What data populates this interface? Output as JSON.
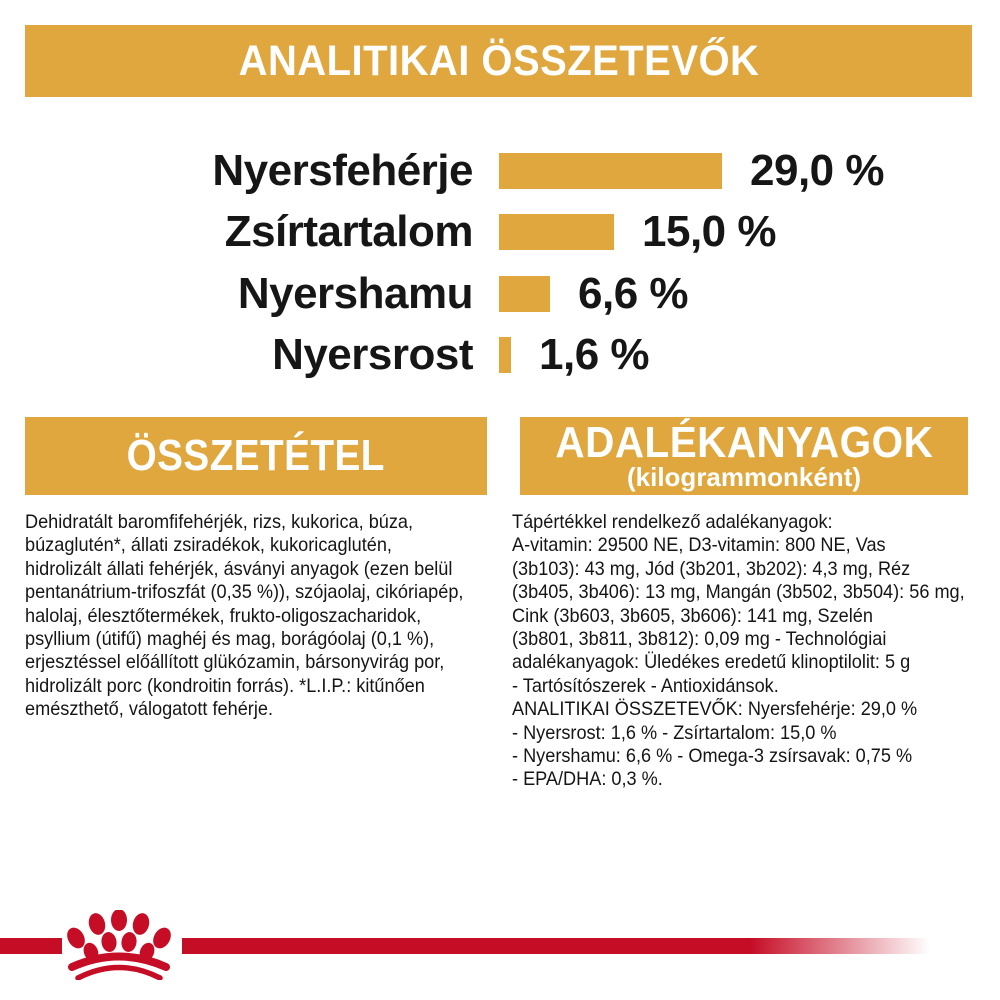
{
  "colors": {
    "gold": "#DFA73E",
    "red": "#C60D26",
    "black": "#161616",
    "white": "#FFFFFF"
  },
  "header": {
    "title": "ANALITIKAI ÖSSZETEVŐK"
  },
  "chart_data": {
    "type": "bar",
    "orientation": "horizontal",
    "title": "ANALITIKAI ÖSSZETEVŐK",
    "categories": [
      "Nyersfehérje",
      "Zsírtartalom",
      "Nyershamu",
      "Nyersrost"
    ],
    "values": [
      29.0,
      15.0,
      6.6,
      1.6
    ],
    "value_labels": [
      "29,0 %",
      "15,0 %",
      "6,6 %",
      "1,6 %"
    ],
    "xlim": [
      0,
      30
    ],
    "grid": false,
    "legend": "none",
    "bar_color": "#DFA73E"
  },
  "composition": {
    "title": "ÖSSZETÉTEL",
    "lines": [
      "Dehidratált baromfifehérjék, rizs, kukorica, búza,",
      "búzaglutén*, állati zsiradékok, kukoricaglutén,",
      "hidrolizált állati fehérjék, ásványi anyagok (ezen belül",
      "pentanátrium-trifoszfát (0,35 %)), szójaolaj, cikóriapép,",
      "halolaj, élesztőtermékek, frukto-oligoszacharidok,",
      "psyllium (útifű) maghéj és mag, borágóolaj (0,1 %),",
      "erjesztéssel előállított glükózamin, bársonyvirág por,",
      "hidrolizált porc (kondroitin forrás). *L.I.P.: kitűnően",
      "emészthető, válogatott fehérje."
    ]
  },
  "additives": {
    "title": "ADALÉKANYAGOK",
    "subtitle": "(kilogrammonként)",
    "lines": [
      "Tápértékkel rendelkező adalékanyagok:",
      "A-vitamin: 29500 NE, D3-vitamin: 800 NE, Vas",
      "(3b103): 43 mg, Jód (3b201, 3b202): 4,3 mg, Réz",
      "(3b405, 3b406): 13 mg, Mangán (3b502, 3b504): 56 mg,",
      "Cink (3b603, 3b605, 3b606): 141 mg, Szelén",
      "(3b801, 3b811, 3b812): 0,09 mg - Technológiai",
      "adalékanyagok: Üledékes eredetű klinoptilolit: 5 g",
      "- Tartósítószerek - Antioxidánsok.",
      "ANALITIKAI ÖSSZETEVŐK: Nyersfehérje: 29,0 %",
      "- Nyersrost: 1,6 % - Zsírtartalom: 15,0 %",
      "- Nyershamu: 6,6 % - Omega-3 zsírsavak: 0,75 %",
      "- EPA/DHA: 0,3 %."
    ]
  },
  "footer": {
    "logo": "royal-canin-crown-paw"
  }
}
